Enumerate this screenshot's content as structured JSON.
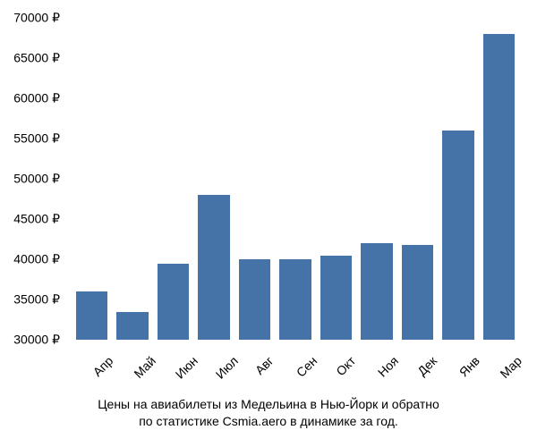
{
  "chart": {
    "type": "bar",
    "categories": [
      "Апр",
      "Май",
      "Июн",
      "Июл",
      "Авг",
      "Сен",
      "Окт",
      "Ноя",
      "Дек",
      "Янв",
      "Мар"
    ],
    "values": [
      36000,
      33500,
      39500,
      48000,
      40000,
      40000,
      40500,
      42000,
      41800,
      56000,
      68000
    ],
    "bar_color": "#4573a7",
    "ylim_min": 30000,
    "ylim_max": 70000,
    "ytick_step": 5000,
    "currency_symbol": "₽",
    "y_ticks": [
      30000,
      35000,
      40000,
      45000,
      50000,
      55000,
      60000,
      65000,
      70000
    ],
    "bar_width_ratio": 0.78,
    "background_color": "#ffffff",
    "label_fontsize": 14,
    "text_color": "#000000",
    "x_label_rotation": -45
  },
  "caption": {
    "line1": "Цены на авиабилеты из Медельина в Нью-Йорк и обратно",
    "line2": "по статистике Csmia.aero в динамике за год."
  }
}
